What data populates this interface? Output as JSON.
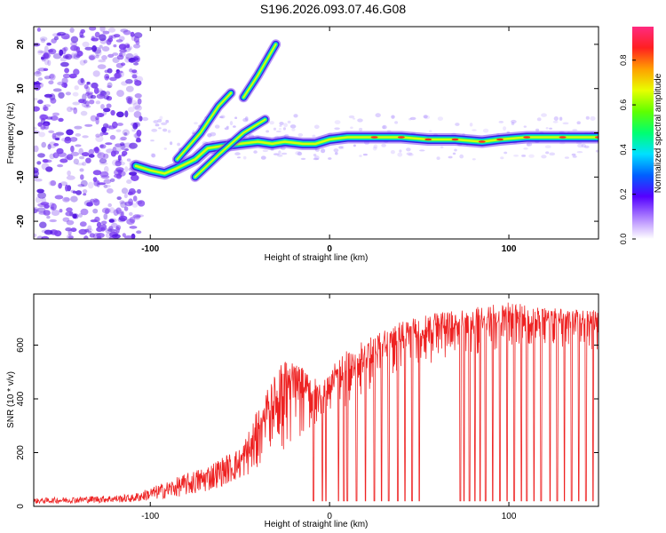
{
  "title": "S196.2026.093.07.46.G08",
  "colors": {
    "frame": "#000000",
    "snr_line": "#ee2222",
    "scatter_base": "#7a3cf0"
  },
  "chart_data": [
    {
      "type": "heatmap",
      "xlabel": "Height of straight line (km)",
      "ylabel": "Frequency (Hz)",
      "xlim": [
        -165,
        150
      ],
      "ylim": [
        -24,
        24
      ],
      "x_ticks": [
        -100,
        0,
        100
      ],
      "y_ticks": [
        -20,
        -10,
        0,
        10,
        20
      ],
      "grid": false,
      "colorbar": {
        "label": "Normalized spectral amplitude",
        "range": [
          0,
          0.95
        ],
        "ticks": [
          0.0,
          0.2,
          0.4,
          0.6,
          0.8
        ],
        "colormap": "rainbow"
      },
      "ridge": [
        {
          "x": -108,
          "y": -7.5
        },
        {
          "x": -100,
          "y": -8.5
        },
        {
          "x": -92,
          "y": -9.2
        },
        {
          "x": -85,
          "y": -8.0
        },
        {
          "x": -75,
          "y": -6.0
        },
        {
          "x": -68,
          "y": -3.5
        },
        {
          "x": -60,
          "y": -3.0
        },
        {
          "x": -50,
          "y": -2.5
        },
        {
          "x": -40,
          "y": -2.0
        },
        {
          "x": -32,
          "y": -2.5
        },
        {
          "x": -25,
          "y": -2.0
        },
        {
          "x": -15,
          "y": -2.5
        },
        {
          "x": -8,
          "y": -2.5
        },
        {
          "x": 0,
          "y": -1.5
        },
        {
          "x": 10,
          "y": -1.0
        },
        {
          "x": 25,
          "y": -1.0
        },
        {
          "x": 40,
          "y": -1.0
        },
        {
          "x": 55,
          "y": -1.5
        },
        {
          "x": 70,
          "y": -1.5
        },
        {
          "x": 85,
          "y": -2.0
        },
        {
          "x": 95,
          "y": -1.5
        },
        {
          "x": 110,
          "y": -1.0
        },
        {
          "x": 130,
          "y": -1.0
        },
        {
          "x": 150,
          "y": -1.0
        }
      ],
      "branches": [
        [
          {
            "x": -85,
            "y": -6
          },
          {
            "x": -72,
            "y": 0
          },
          {
            "x": -62,
            "y": 6
          },
          {
            "x": -55,
            "y": 9
          }
        ],
        [
          {
            "x": -75,
            "y": -10
          },
          {
            "x": -62,
            "y": -5
          },
          {
            "x": -48,
            "y": 0
          },
          {
            "x": -36,
            "y": 3
          }
        ],
        [
          {
            "x": -48,
            "y": 8
          },
          {
            "x": -40,
            "y": 13
          },
          {
            "x": -30,
            "y": 20
          }
        ]
      ],
      "noise_region_x": [
        -165,
        -110
      ]
    },
    {
      "type": "line",
      "xlabel": "Height of straight line (km)",
      "ylabel": "SNR (10 * v/v)",
      "xlim": [
        -165,
        150
      ],
      "ylim": [
        0,
        790
      ],
      "x_ticks": [
        -100,
        0,
        100
      ],
      "y_ticks": [
        0,
        200,
        400,
        600
      ],
      "grid": false,
      "series": [
        {
          "name": "SNR",
          "envelope_x": [
            -165,
            -110,
            -90,
            -70,
            -50,
            -35,
            -25,
            -15,
            -5,
            5,
            20,
            40,
            60,
            80,
            100,
            120,
            150
          ],
          "envelope_low": [
            10,
            15,
            30,
            50,
            100,
            150,
            200,
            270,
            300,
            350,
            420,
            500,
            540,
            560,
            570,
            575,
            580
          ],
          "envelope_high": [
            30,
            45,
            95,
            150,
            220,
            430,
            560,
            520,
            460,
            560,
            620,
            690,
            720,
            740,
            760,
            740,
            730
          ],
          "dropouts_x": [
            -9,
            -4,
            -2,
            5,
            8,
            10,
            15,
            20,
            25,
            29,
            33,
            38,
            42,
            46,
            50,
            73,
            75,
            78,
            81,
            84,
            87,
            91,
            95,
            99,
            103,
            107,
            110,
            114,
            118,
            123,
            127,
            131,
            135,
            139,
            143,
            147
          ],
          "dropout_value": 20
        }
      ]
    }
  ]
}
